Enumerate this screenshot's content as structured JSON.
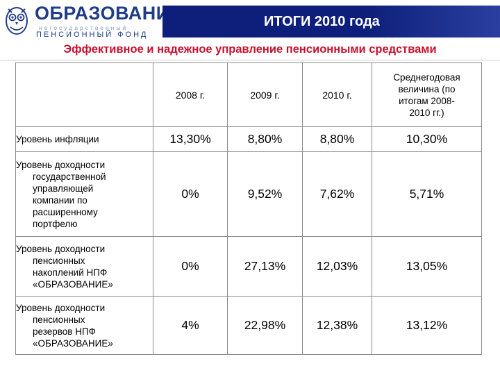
{
  "header": {
    "logo_title": "ОБРАЗОВАНИЕ",
    "logo_subtitle_1": "негосударственный",
    "logo_subtitle_2": "ПЕНСИОННЫЙ ФОНД",
    "slide_title": "ИТОГИ 2010 года",
    "subtitle": "Эффективное и надежное управление пенсионными средствами"
  },
  "colors": {
    "brand_blue": "#1f3c8a",
    "title_bar": "#0d1f7a",
    "subtitle_red": "#c8102e"
  },
  "table": {
    "columns": [
      "2008 г.",
      "2009 г.",
      "2010 г."
    ],
    "average_header_lines": [
      "Среднегодовая",
      "величина   (по",
      "итогам 2008-",
      "2010 гг.)"
    ],
    "rows": [
      {
        "label_lines": [
          "Уровень инфляции"
        ],
        "values": [
          "13,30%",
          "8,80%",
          "8,80%",
          "10,30%"
        ]
      },
      {
        "label_lines": [
          "Уровень доходности",
          "государственной",
          "управляющей",
          "компании по",
          "расширенному",
          "портфелю"
        ],
        "values": [
          "0%",
          "9,52%",
          "7,62%",
          "5,71%"
        ]
      },
      {
        "label_lines": [
          "Уровень доходности",
          "пенсионных",
          "накоплений НПФ",
          "«ОБРАЗОВАНИЕ»"
        ],
        "values": [
          "0%",
          "27,13%",
          "12,03%",
          "13,05%"
        ]
      },
      {
        "label_lines": [
          "Уровень доходности",
          "пенсионных",
          "резервов НПФ",
          "«ОБРАЗОВАНИЕ»"
        ],
        "values": [
          "4%",
          "22,98%",
          "12,38%",
          "13,12%"
        ]
      }
    ]
  }
}
